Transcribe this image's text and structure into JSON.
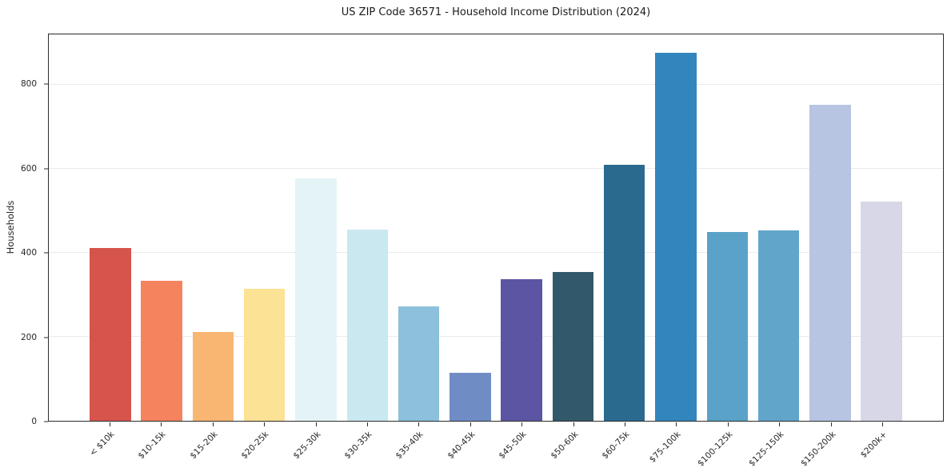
{
  "chart_data": {
    "type": "bar",
    "title": "US ZIP Code 36571 - Household Income Distribution (2024)",
    "xlabel": "",
    "ylabel": "Households",
    "categories": [
      "< $10k",
      "$10-15k",
      "$15-20k",
      "$20-25k",
      "$25-30k",
      "$30-35k",
      "$35-40k",
      "$40-45k",
      "$45-50k",
      "$50-60k",
      "$60-75k",
      "$75-100k",
      "$100-125k",
      "$125-150k",
      "$150-200k",
      "$200k+"
    ],
    "values": [
      412,
      333,
      211,
      314,
      578,
      455,
      272,
      114,
      338,
      354,
      610,
      876,
      450,
      454,
      752,
      522
    ],
    "colors": [
      "#d6544c",
      "#f4835e",
      "#f9b672",
      "#fce294",
      "#e4f4f6",
      "#c9e8f0",
      "#8cc0dd",
      "#6f8dc4",
      "#5b55a4",
      "#32596b",
      "#2a6a8f",
      "#3286bd",
      "#5aa2c8",
      "#62a5cb",
      "#b7c4e2",
      "#d7d7e8"
    ],
    "yticks": [
      0,
      200,
      400,
      600,
      800
    ],
    "ylim": [
      0,
      920
    ],
    "grid": "horizontal",
    "legend": "none"
  }
}
